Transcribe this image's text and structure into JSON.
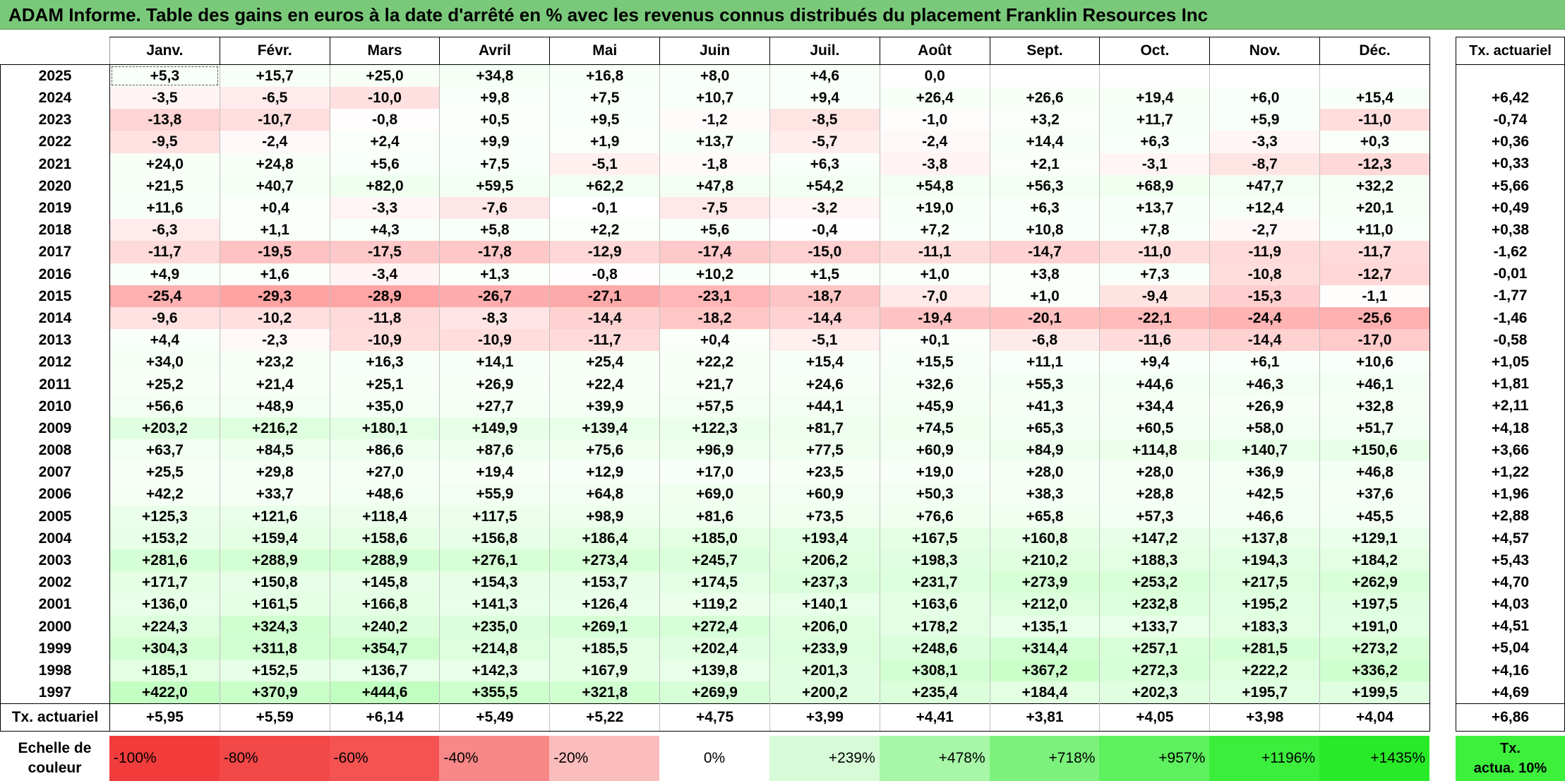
{
  "title": "ADAM Informe. Table des gains en euros à la date d'arrêté en % avec les revenus connus distribués du placement Franklin Resources Inc",
  "months": [
    "Janv.",
    "Févr.",
    "Mars",
    "Avril",
    "Mai",
    "Juin",
    "Juil.",
    "Août",
    "Sept.",
    "Oct.",
    "Nov.",
    "Déc."
  ],
  "rate_header": "Tx. actuariel",
  "rows": [
    {
      "year": "2025",
      "values": [
        "+5,3",
        "+15,7",
        "+25,0",
        "+34,8",
        "+16,8",
        "+8,0",
        "+4,6",
        "0,0",
        "",
        "",
        "",
        ""
      ],
      "rate": ""
    },
    {
      "year": "2024",
      "values": [
        "-3,5",
        "-6,5",
        "-10,0",
        "+9,8",
        "+7,5",
        "+10,7",
        "+9,4",
        "+26,4",
        "+26,6",
        "+19,4",
        "+6,0",
        "+15,4"
      ],
      "rate": "+6,42"
    },
    {
      "year": "2023",
      "values": [
        "-13,8",
        "-10,7",
        "-0,8",
        "+0,5",
        "+9,5",
        "-1,2",
        "-8,5",
        "-1,0",
        "+3,2",
        "+11,7",
        "+5,9",
        "-11,0"
      ],
      "rate": "-0,74"
    },
    {
      "year": "2022",
      "values": [
        "-9,5",
        "-2,4",
        "+2,4",
        "+9,9",
        "+1,9",
        "+13,7",
        "-5,7",
        "-2,4",
        "+14,4",
        "+6,3",
        "-3,3",
        "+0,3"
      ],
      "rate": "+0,36"
    },
    {
      "year": "2021",
      "values": [
        "+24,0",
        "+24,8",
        "+5,6",
        "+7,5",
        "-5,1",
        "-1,8",
        "+6,3",
        "-3,8",
        "+2,1",
        "-3,1",
        "-8,7",
        "-12,3"
      ],
      "rate": "+0,33"
    },
    {
      "year": "2020",
      "values": [
        "+21,5",
        "+40,7",
        "+82,0",
        "+59,5",
        "+62,2",
        "+47,8",
        "+54,2",
        "+54,8",
        "+56,3",
        "+68,9",
        "+47,7",
        "+32,2"
      ],
      "rate": "+5,66"
    },
    {
      "year": "2019",
      "values": [
        "+11,6",
        "+0,4",
        "-3,3",
        "-7,6",
        "-0,1",
        "-7,5",
        "-3,2",
        "+19,0",
        "+6,3",
        "+13,7",
        "+12,4",
        "+20,1"
      ],
      "rate": "+0,49"
    },
    {
      "year": "2018",
      "values": [
        "-6,3",
        "+1,1",
        "+4,3",
        "+5,8",
        "+2,2",
        "+5,6",
        "-0,4",
        "+7,2",
        "+10,8",
        "+7,8",
        "-2,7",
        "+11,0"
      ],
      "rate": "+0,38"
    },
    {
      "year": "2017",
      "values": [
        "-11,7",
        "-19,5",
        "-17,5",
        "-17,8",
        "-12,9",
        "-17,4",
        "-15,0",
        "-11,1",
        "-14,7",
        "-11,0",
        "-11,9",
        "-11,7"
      ],
      "rate": "-1,62"
    },
    {
      "year": "2016",
      "values": [
        "+4,9",
        "+1,6",
        "-3,4",
        "+1,3",
        "-0,8",
        "+10,2",
        "+1,5",
        "+1,0",
        "+3,8",
        "+7,3",
        "-10,8",
        "-12,7"
      ],
      "rate": "-0,01"
    },
    {
      "year": "2015",
      "values": [
        "-25,4",
        "-29,3",
        "-28,9",
        "-26,7",
        "-27,1",
        "-23,1",
        "-18,7",
        "-7,0",
        "+1,0",
        "-9,4",
        "-15,3",
        "-1,1"
      ],
      "rate": "-1,77"
    },
    {
      "year": "2014",
      "values": [
        "-9,6",
        "-10,2",
        "-11,8",
        "-8,3",
        "-14,4",
        "-18,2",
        "-14,4",
        "-19,4",
        "-20,1",
        "-22,1",
        "-24,4",
        "-25,6"
      ],
      "rate": "-1,46"
    },
    {
      "year": "2013",
      "values": [
        "+4,4",
        "-2,3",
        "-10,9",
        "-10,9",
        "-11,7",
        "+0,4",
        "-5,1",
        "+0,1",
        "-6,8",
        "-11,6",
        "-14,4",
        "-17,0"
      ],
      "rate": "-0,58"
    },
    {
      "year": "2012",
      "values": [
        "+34,0",
        "+23,2",
        "+16,3",
        "+14,1",
        "+25,4",
        "+22,2",
        "+15,4",
        "+15,5",
        "+11,1",
        "+9,4",
        "+6,1",
        "+10,6"
      ],
      "rate": "+1,05"
    },
    {
      "year": "2011",
      "values": [
        "+25,2",
        "+21,4",
        "+25,1",
        "+26,9",
        "+22,4",
        "+21,7",
        "+24,6",
        "+32,6",
        "+55,3",
        "+44,6",
        "+46,3",
        "+46,1"
      ],
      "rate": "+1,81"
    },
    {
      "year": "2010",
      "values": [
        "+56,6",
        "+48,9",
        "+35,0",
        "+27,7",
        "+39,9",
        "+57,5",
        "+44,1",
        "+45,9",
        "+41,3",
        "+34,4",
        "+26,9",
        "+32,8"
      ],
      "rate": "+2,11"
    },
    {
      "year": "2009",
      "values": [
        "+203,2",
        "+216,2",
        "+180,1",
        "+149,9",
        "+139,4",
        "+122,3",
        "+81,7",
        "+74,5",
        "+65,3",
        "+60,5",
        "+58,0",
        "+51,7"
      ],
      "rate": "+4,18"
    },
    {
      "year": "2008",
      "values": [
        "+63,7",
        "+84,5",
        "+86,6",
        "+87,6",
        "+75,6",
        "+96,9",
        "+77,5",
        "+60,9",
        "+84,9",
        "+114,8",
        "+140,7",
        "+150,6"
      ],
      "rate": "+3,66"
    },
    {
      "year": "2007",
      "values": [
        "+25,5",
        "+29,8",
        "+27,0",
        "+19,4",
        "+12,9",
        "+17,0",
        "+23,5",
        "+19,0",
        "+28,0",
        "+28,0",
        "+36,9",
        "+46,8"
      ],
      "rate": "+1,22"
    },
    {
      "year": "2006",
      "values": [
        "+42,2",
        "+33,7",
        "+48,6",
        "+55,9",
        "+64,8",
        "+69,0",
        "+60,9",
        "+50,3",
        "+38,3",
        "+28,8",
        "+42,5",
        "+37,6"
      ],
      "rate": "+1,96"
    },
    {
      "year": "2005",
      "values": [
        "+125,3",
        "+121,6",
        "+118,4",
        "+117,5",
        "+98,9",
        "+81,6",
        "+73,5",
        "+76,6",
        "+65,8",
        "+57,3",
        "+46,6",
        "+45,5"
      ],
      "rate": "+2,88"
    },
    {
      "year": "2004",
      "values": [
        "+153,2",
        "+159,4",
        "+158,6",
        "+156,8",
        "+186,4",
        "+185,0",
        "+193,4",
        "+167,5",
        "+160,8",
        "+147,2",
        "+137,8",
        "+129,1"
      ],
      "rate": "+4,57"
    },
    {
      "year": "2003",
      "values": [
        "+281,6",
        "+288,9",
        "+288,9",
        "+276,1",
        "+273,4",
        "+245,7",
        "+206,2",
        "+198,3",
        "+210,2",
        "+188,3",
        "+194,3",
        "+184,2"
      ],
      "rate": "+5,43"
    },
    {
      "year": "2002",
      "values": [
        "+171,7",
        "+150,8",
        "+145,8",
        "+154,3",
        "+153,7",
        "+174,5",
        "+237,3",
        "+231,7",
        "+273,9",
        "+253,2",
        "+217,5",
        "+262,9"
      ],
      "rate": "+4,70"
    },
    {
      "year": "2001",
      "values": [
        "+136,0",
        "+161,5",
        "+166,8",
        "+141,3",
        "+126,4",
        "+119,2",
        "+140,1",
        "+163,6",
        "+212,0",
        "+232,8",
        "+195,2",
        "+197,5"
      ],
      "rate": "+4,03"
    },
    {
      "year": "2000",
      "values": [
        "+224,3",
        "+324,3",
        "+240,2",
        "+235,0",
        "+269,1",
        "+272,4",
        "+206,0",
        "+178,2",
        "+135,1",
        "+133,7",
        "+183,3",
        "+191,0"
      ],
      "rate": "+4,51"
    },
    {
      "year": "1999",
      "values": [
        "+304,3",
        "+311,8",
        "+354,7",
        "+214,8",
        "+185,5",
        "+202,4",
        "+233,9",
        "+248,6",
        "+314,4",
        "+257,1",
        "+281,5",
        "+273,2"
      ],
      "rate": "+5,04"
    },
    {
      "year": "1998",
      "values": [
        "+185,1",
        "+152,5",
        "+136,7",
        "+142,3",
        "+167,9",
        "+139,8",
        "+201,3",
        "+308,1",
        "+367,2",
        "+272,3",
        "+222,2",
        "+336,2"
      ],
      "rate": "+4,16"
    },
    {
      "year": "1997",
      "values": [
        "+422,0",
        "+370,9",
        "+444,6",
        "+355,5",
        "+321,8",
        "+269,9",
        "+200,2",
        "+235,4",
        "+184,4",
        "+202,3",
        "+195,7",
        "+199,5"
      ],
      "rate": "+4,69"
    }
  ],
  "footer": {
    "label": "Tx. actuariel",
    "values": [
      "+5,95",
      "+5,59",
      "+6,14",
      "+5,49",
      "+5,22",
      "+4,75",
      "+3,99",
      "+4,41",
      "+3,81",
      "+4,05",
      "+3,98",
      "+4,04"
    ],
    "rate": "+6,86"
  },
  "scale": {
    "label_line1": "Echelle de",
    "label_line2": "couleur",
    "steps": [
      {
        "label": "-100%",
        "color": "#f23c3c"
      },
      {
        "label": "-80%",
        "color": "#f24848"
      },
      {
        "label": "-60%",
        "color": "#f55252"
      },
      {
        "label": "-40%",
        "color": "#f88888"
      },
      {
        "label": "-20%",
        "color": "#fbbcbc"
      },
      {
        "label": "0%",
        "color": "#ffffff"
      },
      {
        "label": "+239%",
        "color": "#d6fbd6"
      },
      {
        "label": "+478%",
        "color": "#a8f6a8"
      },
      {
        "label": "+718%",
        "color": "#7cf27c"
      },
      {
        "label": "+957%",
        "color": "#5ef05e"
      },
      {
        "label": "+1196%",
        "color": "#3cee3c"
      },
      {
        "label": "+1435%",
        "color": "#28ea28"
      }
    ],
    "tx_line1": "Tx.",
    "tx_line2": "actua. 10%",
    "tx_color": "#3cf03c"
  }
}
